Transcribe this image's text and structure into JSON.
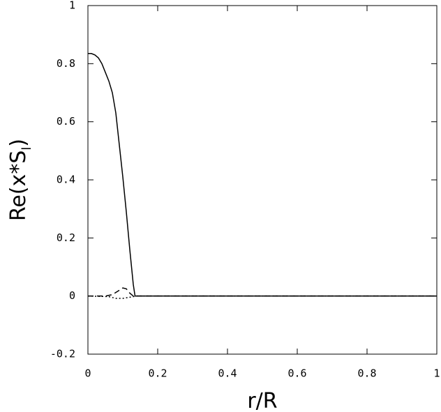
{
  "chart_data": {
    "type": "line",
    "xlabel": "r/R",
    "ylabel": [
      "Re(x*S",
      "l",
      ")"
    ],
    "xlim": [
      0,
      1
    ],
    "xticks": [
      0,
      0.2,
      0.4,
      0.6,
      0.8,
      1
    ],
    "ylim": [
      -0.2,
      1
    ],
    "yticks": [
      -0.2,
      0,
      0.2,
      0.4,
      0.6,
      0.8,
      1
    ],
    "grid": false,
    "series": [
      {
        "color": "#000000",
        "dash": "solid",
        "x": [
          0,
          0.01,
          0.02,
          0.03,
          0.04,
          0.05,
          0.06,
          0.07,
          0.08,
          0.09,
          0.1,
          0.11,
          0.12,
          0.13,
          0.135,
          0.2,
          1
        ],
        "values": [
          0.835,
          0.835,
          0.83,
          0.82,
          0.8,
          0.77,
          0.74,
          0.7,
          0.63,
          0.52,
          0.41,
          0.29,
          0.16,
          0.04,
          0,
          0,
          0
        ]
      },
      {
        "color": "#000000",
        "dash": "dashed",
        "x": [
          0,
          0.05,
          0.07,
          0.09,
          0.1,
          0.11,
          0.12,
          0.13,
          1
        ],
        "values": [
          0,
          0,
          0.005,
          0.02,
          0.028,
          0.025,
          0.01,
          0,
          0
        ]
      },
      {
        "color": "#000000",
        "dash": "dotted",
        "x": [
          0,
          0.06,
          0.08,
          0.1,
          0.12,
          0.14,
          1
        ],
        "values": [
          0,
          -0.002,
          -0.008,
          -0.008,
          -0.004,
          0,
          0
        ]
      }
    ]
  }
}
